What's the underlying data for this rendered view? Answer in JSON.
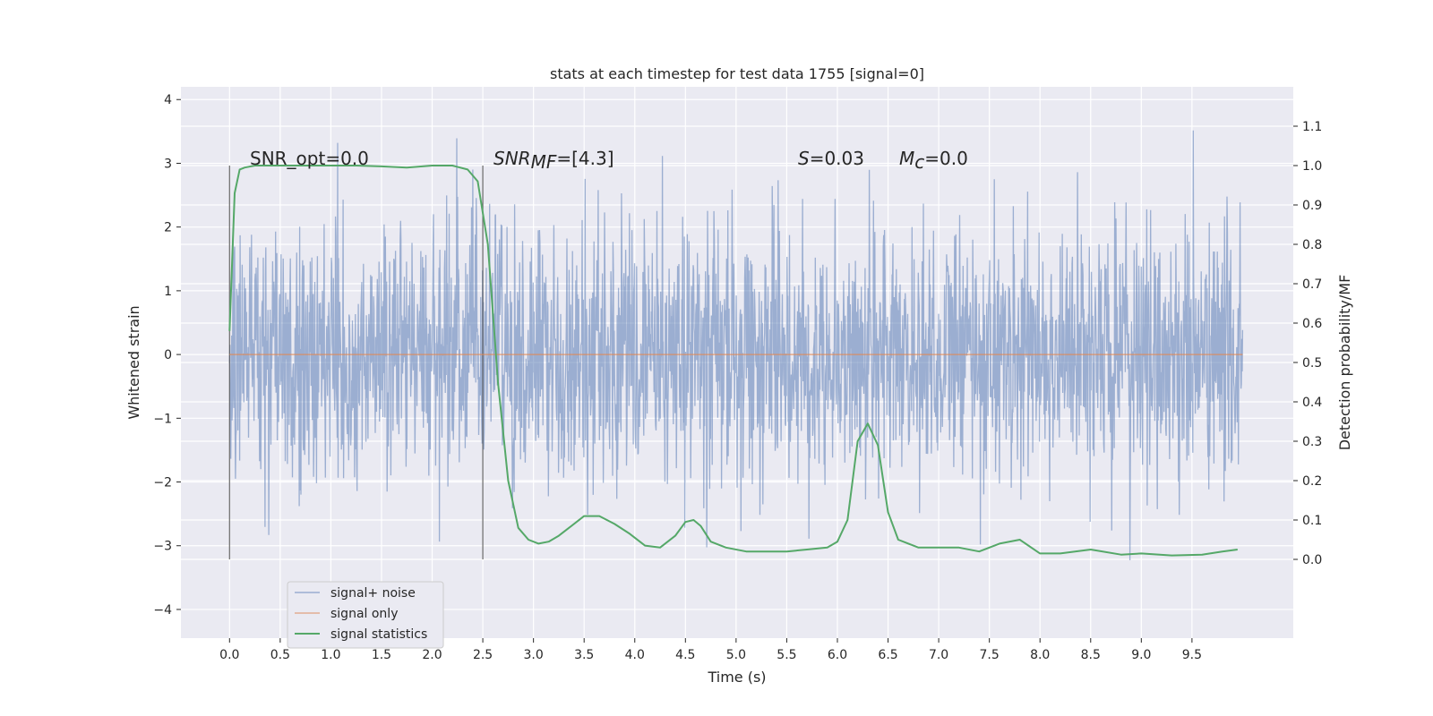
{
  "chart_data": {
    "type": "line",
    "title": "stats at each timestep for test data 1755 [signal=0]",
    "xlabel": "Time (s)",
    "ylabel_left": "Whitened strain",
    "ylabel_right": "Detection probability/MF",
    "xlim": [
      -0.48,
      10.5
    ],
    "ylim_left": [
      -4.45,
      4.2
    ],
    "ylim_right": [
      -0.2,
      1.2
    ],
    "x_ticks": [
      "0.0",
      "0.5",
      "1.0",
      "1.5",
      "2.0",
      "2.5",
      "3.0",
      "3.5",
      "4.0",
      "4.5",
      "5.0",
      "5.5",
      "6.0",
      "6.5",
      "7.0",
      "7.5",
      "8.0",
      "8.5",
      "9.0",
      "9.5"
    ],
    "y_ticks_left": [
      "−4",
      "−3",
      "−2",
      "−1",
      "0",
      "1",
      "2",
      "3",
      "4"
    ],
    "y_ticks_right": [
      "0.0",
      "0.1",
      "0.2",
      "0.3",
      "0.4",
      "0.5",
      "0.6",
      "0.7",
      "0.8",
      "0.9",
      "1.0",
      "1.1"
    ],
    "grid": true,
    "legend_position": "lower-left",
    "annotations": {
      "snr_opt": "SNR_opt=0.0",
      "snr_mf_main": "SNR",
      "snr_mf_sub": "MF",
      "snr_mf_value": "=[4.3]",
      "s_main": "S",
      "s_value": "=0.03",
      "mc_main": "M",
      "mc_sub": "c",
      "mc_value": "=0.0"
    },
    "vertical_lines": [
      0.0,
      2.5
    ],
    "series": [
      {
        "name": "signal+ noise",
        "color": "#4c72b0",
        "axis": "left",
        "x_range": [
          0.0,
          10.0
        ],
        "noise_envelope": 1.0
      },
      {
        "name": "signal only",
        "color": "#dd8452",
        "axis": "left",
        "x": [
          0.0,
          10.0
        ],
        "y": [
          0.0,
          0.0
        ]
      },
      {
        "name": "signal statistics",
        "color": "#55a868",
        "axis": "right",
        "x": [
          0.0,
          0.05,
          0.1,
          0.15,
          0.25,
          0.5,
          0.75,
          1.0,
          1.25,
          1.5,
          1.75,
          2.0,
          2.2,
          2.35,
          2.45,
          2.55,
          2.65,
          2.75,
          2.85,
          2.95,
          3.05,
          3.15,
          3.25,
          3.35,
          3.5,
          3.65,
          3.8,
          3.95,
          4.1,
          4.25,
          4.4,
          4.5,
          4.58,
          4.65,
          4.75,
          4.9,
          5.1,
          5.3,
          5.5,
          5.7,
          5.9,
          6.0,
          6.1,
          6.2,
          6.3,
          6.4,
          6.5,
          6.6,
          6.8,
          7.0,
          7.2,
          7.4,
          7.6,
          7.8,
          8.0,
          8.2,
          8.5,
          8.8,
          9.0,
          9.3,
          9.6,
          9.8,
          9.95
        ],
        "y": [
          0.58,
          0.93,
          0.99,
          0.995,
          1.0,
          1.0,
          1.0,
          1.0,
          1.0,
          0.998,
          0.995,
          1.0,
          1.0,
          0.99,
          0.96,
          0.8,
          0.45,
          0.2,
          0.08,
          0.05,
          0.04,
          0.045,
          0.06,
          0.08,
          0.11,
          0.11,
          0.09,
          0.065,
          0.035,
          0.03,
          0.06,
          0.095,
          0.1,
          0.085,
          0.045,
          0.03,
          0.02,
          0.02,
          0.02,
          0.025,
          0.03,
          0.045,
          0.1,
          0.3,
          0.345,
          0.29,
          0.12,
          0.05,
          0.03,
          0.03,
          0.03,
          0.02,
          0.04,
          0.05,
          0.015,
          0.015,
          0.025,
          0.012,
          0.015,
          0.01,
          0.012,
          0.02,
          0.025
        ]
      }
    ]
  }
}
